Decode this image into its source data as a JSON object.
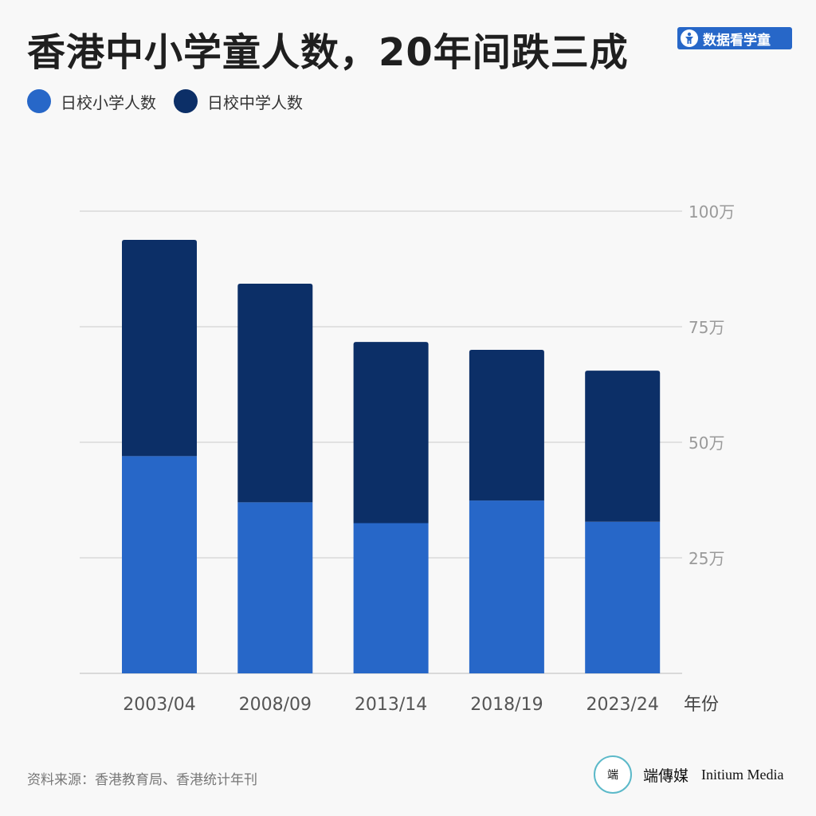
{
  "title": "香港中小学童人数，20年间跌三成",
  "tag": {
    "label": "数据看学童",
    "icon": "child-icon"
  },
  "legend": {
    "primary_label": "日校小学人数",
    "secondary_label": "日校中学人数"
  },
  "colors": {
    "primary": "#2767c8",
    "secondary": "#0c2f67",
    "grid": "#d9d9d9"
  },
  "chart_data": {
    "type": "bar",
    "stacked": true,
    "categories": [
      "2003/04",
      "2008/09",
      "2013/14",
      "2018/19",
      "2023/24"
    ],
    "series": [
      {
        "name": "日校小学人数",
        "values": [
          47,
          37,
          32.5,
          37.4,
          32.8
        ]
      },
      {
        "name": "日校中学人数",
        "values": [
          46.8,
          47.3,
          39.2,
          32.6,
          32.7
        ]
      }
    ],
    "ylim": [
      0,
      100
    ],
    "yticks": [
      25,
      50,
      75,
      100
    ],
    "ytick_labels": [
      "25万",
      "50万",
      "75万",
      "100万"
    ],
    "xlabel": "年份",
    "ylabel": "",
    "grid": true,
    "legend_position": "top-left",
    "yaxis_position": "right"
  },
  "footer": {
    "source": "资料来源：香港教育局、香港统计年刊",
    "brand_cn": "端傳媒",
    "brand_en": "Initium Media",
    "logo_text": "端"
  }
}
